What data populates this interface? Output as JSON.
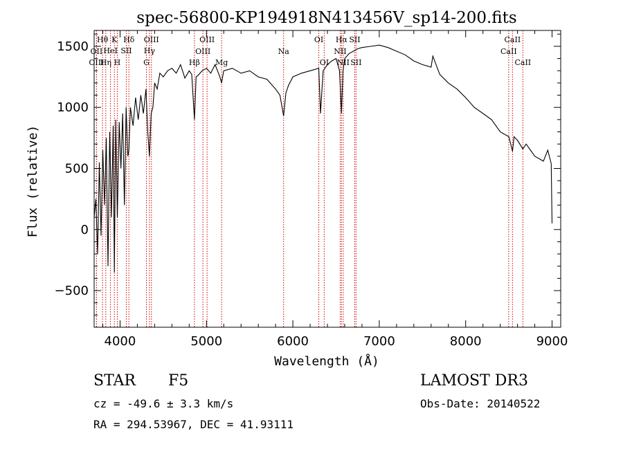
{
  "chart_data": {
    "type": "line",
    "title": "spec-56800-KP194918N413456V_sp14-200.fits",
    "xlabel": "Wavelength (Å)",
    "ylabel": "Flux (relative)",
    "xlim": [
      3700,
      9100
    ],
    "ylim": [
      -800,
      1630
    ],
    "xticks": [
      4000,
      5000,
      6000,
      7000,
      8000,
      9000
    ],
    "yticks": [
      -500,
      0,
      500,
      1000,
      1500
    ],
    "line_color": "#000000",
    "marker_color": "#cc0000",
    "series": [
      {
        "name": "spectrum",
        "x": [
          3700,
          3720,
          3740,
          3760,
          3780,
          3800,
          3820,
          3840,
          3860,
          3880,
          3900,
          3920,
          3934,
          3950,
          3968,
          3990,
          4010,
          4030,
          4050,
          4070,
          4090,
          4102,
          4120,
          4150,
          4180,
          4210,
          4240,
          4270,
          4300,
          4320,
          4340,
          4360,
          4380,
          4400,
          4430,
          4460,
          4500,
          4550,
          4600,
          4650,
          4700,
          4750,
          4800,
          4830,
          4861,
          4880,
          4900,
          4950,
          5000,
          5050,
          5100,
          5150,
          5175,
          5200,
          5300,
          5400,
          5500,
          5600,
          5700,
          5800,
          5850,
          5893,
          5920,
          5950,
          6000,
          6100,
          6200,
          6300,
          6320,
          6350,
          6400,
          6450,
          6500,
          6540,
          6563,
          6580,
          6600,
          6650,
          6700,
          6750,
          6800,
          6900,
          7000,
          7100,
          7200,
          7300,
          7400,
          7500,
          7600,
          7620,
          7700,
          7800,
          7900,
          8000,
          8100,
          8200,
          8300,
          8400,
          8450,
          8500,
          8542,
          8560,
          8600,
          8662,
          8700,
          8750,
          8800,
          8850,
          8900,
          8950,
          8990,
          9000
        ],
        "y": [
          100,
          250,
          -200,
          550,
          -50,
          650,
          200,
          750,
          -300,
          800,
          100,
          850,
          -350,
          900,
          100,
          880,
          500,
          950,
          200,
          1000,
          600,
          650,
          1000,
          850,
          1080,
          900,
          1100,
          950,
          1150,
          800,
          600,
          950,
          1000,
          1200,
          1150,
          1280,
          1250,
          1300,
          1320,
          1280,
          1350,
          1240,
          1300,
          1270,
          900,
          1250,
          1260,
          1300,
          1320,
          1280,
          1350,
          1260,
          1200,
          1300,
          1320,
          1280,
          1300,
          1250,
          1230,
          1150,
          1100,
          930,
          1120,
          1180,
          1250,
          1280,
          1300,
          1320,
          950,
          1300,
          1350,
          1380,
          1400,
          1300,
          950,
          1300,
          1400,
          1440,
          1460,
          1480,
          1490,
          1500,
          1510,
          1490,
          1460,
          1430,
          1380,
          1350,
          1330,
          1420,
          1270,
          1200,
          1150,
          1080,
          1000,
          950,
          900,
          800,
          780,
          760,
          640,
          760,
          730,
          660,
          700,
          650,
          600,
          580,
          560,
          650,
          540,
          50
        ]
      }
    ],
    "lines": [
      {
        "name": "OII",
        "wl": 3727,
        "row": 2
      },
      {
        "name": "Hθ",
        "wl": 3797,
        "row": 0
      },
      {
        "name": "OIII",
        "wl": 3727,
        "row": 3
      },
      {
        "name": "K",
        "wl": 3934,
        "row": 0
      },
      {
        "name": "HeI",
        "wl": 3889,
        "row": 1
      },
      {
        "name": "Hη",
        "wl": 3835,
        "row": 3
      },
      {
        "name": "SII",
        "wl": 4072,
        "row": 1
      },
      {
        "name": "H",
        "wl": 3968,
        "row": 3
      },
      {
        "name": "Hδ",
        "wl": 4102,
        "row": 0
      },
      {
        "name": "OIII",
        "wl": 4363,
        "row": 0
      },
      {
        "name": "Hγ",
        "wl": 4340,
        "row": 1
      },
      {
        "name": "G",
        "wl": 4305,
        "row": 3
      },
      {
        "name": "Hβ",
        "wl": 4861,
        "row": 3
      },
      {
        "name": "OIII",
        "wl": 5007,
        "row": 0
      },
      {
        "name": "OIII",
        "wl": 4959,
        "row": 2
      },
      {
        "name": "Mg",
        "wl": 5175,
        "row": 3
      },
      {
        "name": "Na",
        "wl": 5893,
        "row": 2
      },
      {
        "name": "OI",
        "wl": 6300,
        "row": 0
      },
      {
        "name": "OI",
        "wl": 6363,
        "row": 3
      },
      {
        "name": "Hα",
        "wl": 6563,
        "row": 0
      },
      {
        "name": "SII",
        "wl": 6716,
        "row": 0
      },
      {
        "name": "NII",
        "wl": 6548,
        "row": 2
      },
      {
        "name": "NII",
        "wl": 6583,
        "row": 3
      },
      {
        "name": "SII",
        "wl": 6731,
        "row": 3
      },
      {
        "name": "CaII",
        "wl": 8542,
        "row": 0
      },
      {
        "name": "CaII",
        "wl": 8498,
        "row": 2
      },
      {
        "name": "CaII",
        "wl": 8662,
        "row": 3
      }
    ]
  },
  "info": {
    "object_class": "STAR",
    "subclass": "F5",
    "survey": "LAMOST DR3",
    "redshift": "cz = -49.6 ± 3.3 km/s",
    "obs_date": "Obs-Date: 20140522",
    "coords": "RA = 294.53967, DEC =  41.93111"
  }
}
